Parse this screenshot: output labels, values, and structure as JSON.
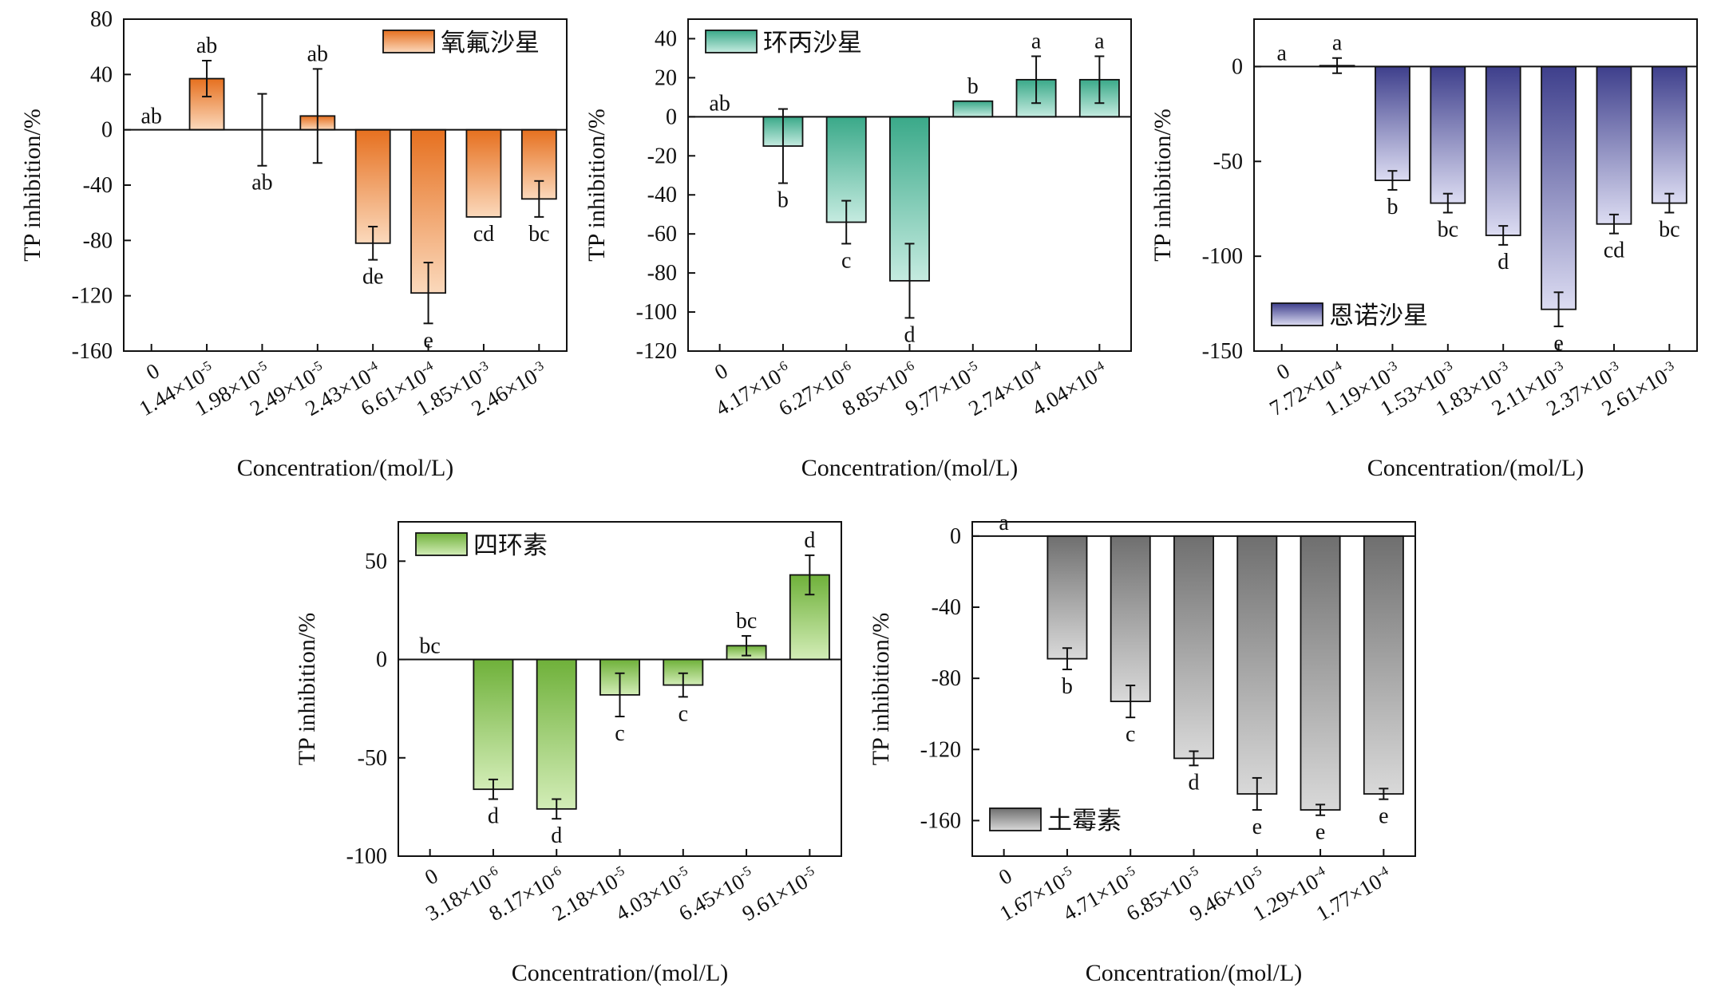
{
  "chart_data": [
    {
      "type": "bar",
      "legend": "氧氟沙星",
      "legend_position": "top-right",
      "colors": {
        "top": "#e6701f",
        "bottom": "#fbd9bc"
      },
      "xlabel": "Concentration/(mol/L)",
      "ylabel": "TP inhibition/%",
      "ylim": [
        -160,
        80
      ],
      "yticks": [
        "80",
        "40",
        "0",
        "-40",
        "-80",
        "-120",
        "-160"
      ],
      "categories": [
        {
          "base": "0",
          "exp": ""
        },
        {
          "base": "1.44×10",
          "exp": "-5"
        },
        {
          "base": "1.98×10",
          "exp": "-5"
        },
        {
          "base": "2.49×10",
          "exp": "-5"
        },
        {
          "base": "2.43×10",
          "exp": "-4"
        },
        {
          "base": "6.61×10",
          "exp": "-4"
        },
        {
          "base": "1.85×10",
          "exp": "-3"
        },
        {
          "base": "2.46×10",
          "exp": "-3"
        }
      ],
      "values": [
        0,
        37,
        0,
        10,
        -82,
        -118,
        -63,
        -50
      ],
      "errors": [
        0,
        13,
        26,
        34,
        12,
        22,
        0,
        13
      ],
      "labels": [
        "ab",
        "ab",
        "ab",
        "ab",
        "de",
        "e",
        "cd",
        "bc"
      ]
    },
    {
      "type": "bar",
      "legend": "环丙沙星",
      "legend_position": "top-left",
      "colors": {
        "top": "#3aa989",
        "bottom": "#c5ebe0"
      },
      "xlabel": "Concentration/(mol/L)",
      "ylabel": "TP inhibition/%",
      "ylim": [
        -120,
        50
      ],
      "yticks": [
        "40",
        "20",
        "0",
        "-20",
        "-40",
        "-60",
        "-80",
        "-100",
        "-120"
      ],
      "categories": [
        {
          "base": "0",
          "exp": ""
        },
        {
          "base": "4.17×10",
          "exp": "-6"
        },
        {
          "base": "6.27×10",
          "exp": "-6"
        },
        {
          "base": "8.85×10",
          "exp": "-6"
        },
        {
          "base": "9.77×10",
          "exp": "-5"
        },
        {
          "base": "2.74×10",
          "exp": "-4"
        },
        {
          "base": "4.04×10",
          "exp": "-4"
        }
      ],
      "values": [
        0,
        -15,
        -54,
        -84,
        8,
        19,
        19
      ],
      "errors": [
        0,
        19,
        11,
        19,
        0,
        12,
        12
      ],
      "labels": [
        "ab",
        "b",
        "c",
        "d",
        "b",
        "a",
        "a"
      ]
    },
    {
      "type": "bar",
      "legend": "恩诺沙星",
      "legend_position": "bottom-left",
      "colors": {
        "top": "#3e3f8c",
        "bottom": "#dcdcf2"
      },
      "xlabel": "Concentration/(mol/L)",
      "ylabel": "TP inhibition/%",
      "ylim": [
        -150,
        25
      ],
      "yticks": [
        "0",
        "-50",
        "-100",
        "-150"
      ],
      "categories": [
        {
          "base": "0",
          "exp": ""
        },
        {
          "base": "7.72×10",
          "exp": "-4"
        },
        {
          "base": "1.19×10",
          "exp": "-3"
        },
        {
          "base": "1.53×10",
          "exp": "-3"
        },
        {
          "base": "1.83×10",
          "exp": "-3"
        },
        {
          "base": "2.11×10",
          "exp": "-3"
        },
        {
          "base": "2.37×10",
          "exp": "-3"
        },
        {
          "base": "2.61×10",
          "exp": "-3"
        }
      ],
      "values": [
        0,
        0.5,
        -60,
        -72,
        -89,
        -128,
        -83,
        -72
      ],
      "errors": [
        0,
        4,
        5,
        5,
        5,
        9,
        5,
        5
      ],
      "labels": [
        "a",
        "a",
        "b",
        "bc",
        "d",
        "e",
        "cd",
        "bc"
      ]
    },
    {
      "type": "bar",
      "legend": "四环素",
      "legend_position": "top-left",
      "colors": {
        "top": "#6fb13a",
        "bottom": "#d3edb7"
      },
      "xlabel": "Concentration/(mol/L)",
      "ylabel": "TP inhibition/%",
      "ylim": [
        -100,
        70
      ],
      "yticks": [
        "50",
        "0",
        "-50",
        "-100"
      ],
      "categories": [
        {
          "base": "0",
          "exp": ""
        },
        {
          "base": "3.18×10",
          "exp": "-6"
        },
        {
          "base": "8.17×10",
          "exp": "-6"
        },
        {
          "base": "2.18×10",
          "exp": "-5"
        },
        {
          "base": "4.03×10",
          "exp": "-5"
        },
        {
          "base": "6.45×10",
          "exp": "-5"
        },
        {
          "base": "9.61×10",
          "exp": "-5"
        }
      ],
      "values": [
        0,
        -66,
        -76,
        -18,
        -13,
        7,
        43
      ],
      "errors": [
        0,
        5,
        5,
        11,
        6,
        5,
        10
      ],
      "labels": [
        "bc",
        "d",
        "d",
        "c",
        "c",
        "bc",
        "d"
      ]
    },
    {
      "type": "bar",
      "legend": "土霉素",
      "legend_position": "bottom-left",
      "colors": {
        "top": "#6f6f6f",
        "bottom": "#d9d9d9"
      },
      "xlabel": "Concentration/(mol/L)",
      "ylabel": "TP inhibition/%",
      "ylim": [
        -180,
        8
      ],
      "yticks": [
        "0",
        "-40",
        "-80",
        "-120",
        "-160"
      ],
      "categories": [
        {
          "base": "0",
          "exp": ""
        },
        {
          "base": "1.67×10",
          "exp": "-5"
        },
        {
          "base": "4.71×10",
          "exp": "-5"
        },
        {
          "base": "6.85×10",
          "exp": "-5"
        },
        {
          "base": "9.46×10",
          "exp": "-5"
        },
        {
          "base": "1.29×10",
          "exp": "-4"
        },
        {
          "base": "1.77×10",
          "exp": "-4"
        }
      ],
      "values": [
        0,
        -69,
        -93,
        -125,
        -145,
        -154,
        -145
      ],
      "errors": [
        0,
        6,
        9,
        4,
        9,
        3,
        3
      ],
      "labels": [
        "a",
        "b",
        "c",
        "d",
        "e",
        "e",
        "e"
      ]
    }
  ]
}
